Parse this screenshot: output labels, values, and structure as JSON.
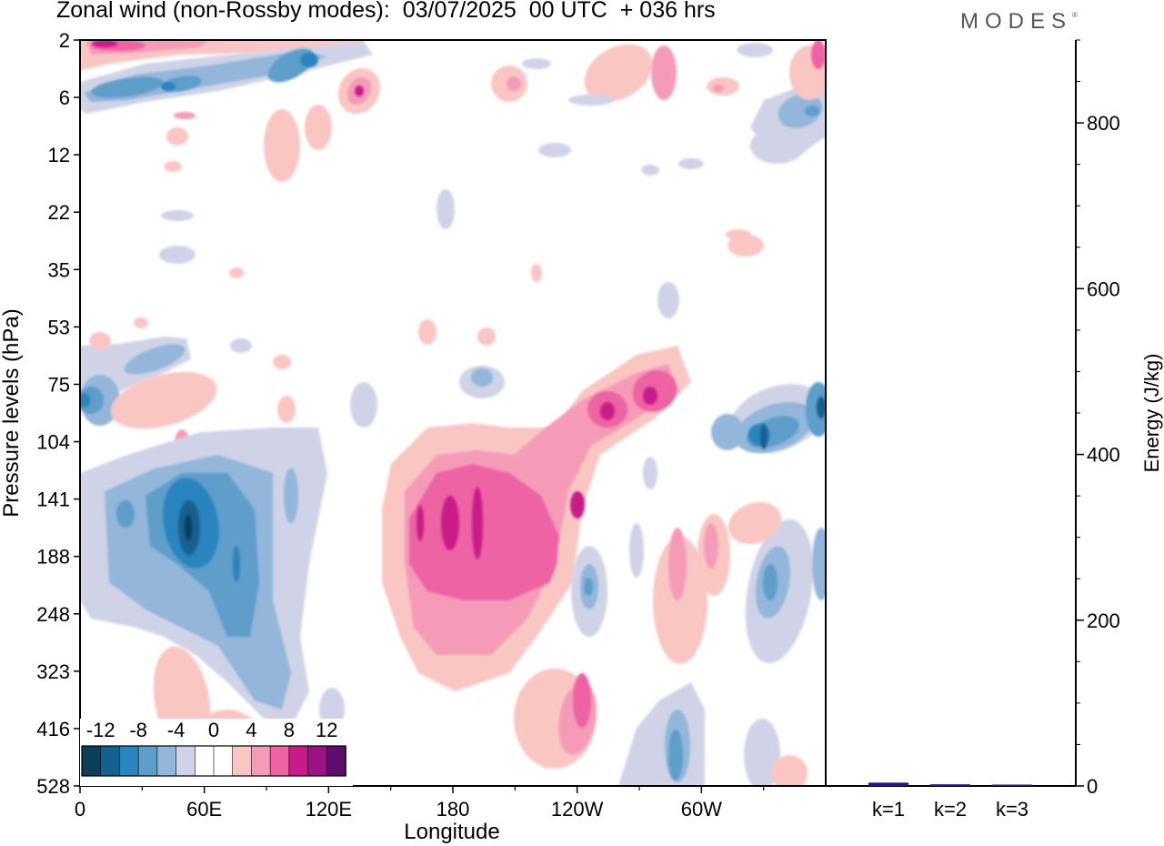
{
  "header": {
    "title": "Zonal wind (non-Rossby modes):  03/07/2025  00 UTC  + 036 hrs",
    "logo_text": "MODES",
    "logo_mark": "®"
  },
  "chart_data": [
    {
      "type": "heatmap",
      "title": "Zonal wind (non-Rossby modes)",
      "xlabel": "Longitude",
      "ylabel": "Pressure levels (hPa)",
      "x_ticks": [
        "0",
        "60E",
        "120E",
        "180",
        "120W",
        "60W"
      ],
      "x_tick_degrees": [
        0,
        60,
        120,
        180,
        240,
        300
      ],
      "xlim_degrees": [
        0,
        360
      ],
      "y_ticks": [
        "2",
        "6",
        "12",
        "22",
        "35",
        "53",
        "75",
        "104",
        "141",
        "188",
        "248",
        "323",
        "416",
        "528"
      ],
      "colorbar": {
        "tick_labels": [
          "-12",
          "-8",
          "-4",
          "0",
          "4",
          "8",
          "12"
        ],
        "colors": [
          "#0e3e5c",
          "#12618f",
          "#2a84bd",
          "#5e9dcb",
          "#93b6da",
          "#d0d3e7",
          "#ffffff",
          "#ffffff",
          "#f9c6c3",
          "#f59bb8",
          "#ed64a3",
          "#c91a89",
          "#9a1283",
          "#5e0d6d"
        ]
      },
      "features": [
        {
          "sign": "negative",
          "level": -12,
          "lon": 52,
          "pressure": 165
        },
        {
          "sign": "positive",
          "level": 8,
          "lon": 188,
          "pressure": 170
        },
        {
          "sign": "negative",
          "level": -8,
          "lon": 330,
          "pressure": 115
        },
        {
          "sign": "positive",
          "level": 6,
          "lon": 270,
          "pressure": 90
        },
        {
          "sign": "negative",
          "level": -8,
          "lon": 40,
          "pressure": 5
        },
        {
          "sign": "positive",
          "level": 8,
          "lon": 10,
          "pressure": 2
        }
      ]
    },
    {
      "type": "bar",
      "title": "",
      "categories": [
        "k=1",
        "k=2",
        "k=3"
      ],
      "values": [
        4,
        2,
        0.5
      ],
      "ylabel": "Energy (J/kg)",
      "y_ticks": [
        "0",
        "200",
        "400",
        "600",
        "800"
      ],
      "ylim": [
        0,
        900
      ],
      "bar_color": "#1a1a8c"
    }
  ]
}
